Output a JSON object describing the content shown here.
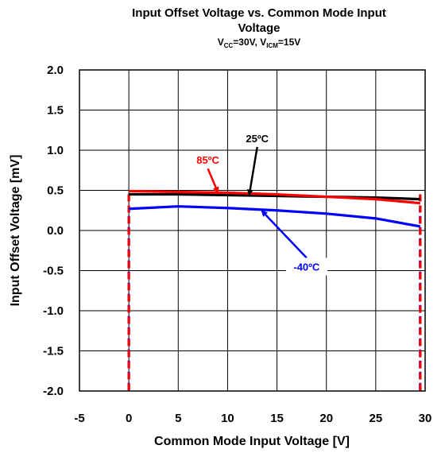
{
  "chart_data": {
    "type": "line",
    "title_line1": "Input Offset Voltage vs. Common Mode Input",
    "title_line2": "Voltage",
    "subtitle": {
      "vcc_symbol": "V",
      "vcc_sub": "CC",
      "vcc_value": "=30V, ",
      "vicm_symbol": "V",
      "vicm_sub": "ICM",
      "vicm_value": "=15V"
    },
    "xlabel": "Common Mode Input Voltage [V]",
    "ylabel": "Input Offset Voltage [mV]",
    "xlim": [
      -5,
      30
    ],
    "ylim": [
      -2.0,
      2.0
    ],
    "x_ticks": [
      "-5",
      "0",
      "5",
      "10",
      "15",
      "20",
      "25",
      "30"
    ],
    "y_ticks": [
      "2.0",
      "1.5",
      "1.0",
      "0.5",
      "0.0",
      "-0.5",
      "-1.0",
      "-1.5",
      "-2.0"
    ],
    "grid": true,
    "series": [
      {
        "name": "25ºC",
        "color": "#000000",
        "x": [
          0,
          5,
          10,
          15,
          20,
          25,
          29.5
        ],
        "y": [
          0.45,
          0.45,
          0.44,
          0.43,
          0.42,
          0.41,
          0.39
        ],
        "boundary_x": [
          0,
          29.5
        ]
      },
      {
        "name": "85ºC",
        "color": "#ff0000",
        "x": [
          0,
          5,
          10,
          15,
          20,
          25,
          29.5
        ],
        "y": [
          0.49,
          0.48,
          0.47,
          0.45,
          0.42,
          0.39,
          0.34
        ],
        "boundary_x": [
          0,
          29.5
        ]
      },
      {
        "name": "-40ºC",
        "color": "#0000ff",
        "x": [
          0,
          5,
          10,
          15,
          20,
          25,
          29.5
        ],
        "y": [
          0.27,
          0.3,
          0.28,
          0.25,
          0.21,
          0.15,
          0.05
        ],
        "boundary_x": [
          0,
          29.5
        ]
      }
    ],
    "annotations": [
      {
        "text": "25ºC",
        "color": "#000000",
        "label_x": 13,
        "label_y": 1.15,
        "arrow_to_x": 12.2,
        "arrow_to_y": 0.45
      },
      {
        "text": "85ºC",
        "color": "#ff0000",
        "label_x": 8,
        "label_y": 0.88,
        "arrow_to_x": 9,
        "arrow_to_y": 0.48
      },
      {
        "text": "-40ºC",
        "color": "#0000ff",
        "label_x": 18,
        "label_y": -0.45,
        "arrow_to_x": 13.5,
        "arrow_to_y": 0.24
      }
    ]
  }
}
